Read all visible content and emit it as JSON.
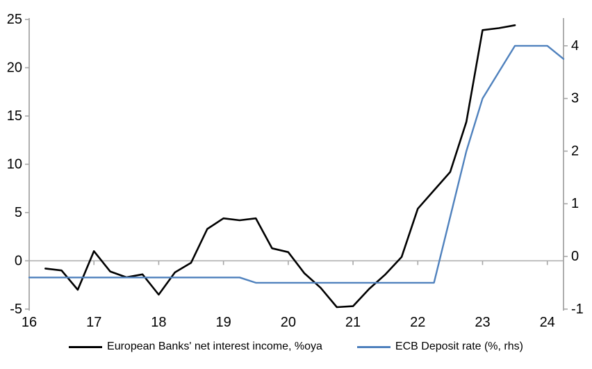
{
  "chart_data": {
    "type": "line",
    "title": "",
    "xlabel": "",
    "ylabel_left": "",
    "ylabel_right": "",
    "x_range": [
      16,
      24.25
    ],
    "x_tick_values": [
      16,
      17,
      18,
      19,
      20,
      21,
      22,
      23,
      24
    ],
    "left_axis": {
      "range": [
        -5,
        25
      ],
      "ticks": [
        25,
        20,
        15,
        10,
        5,
        0,
        -5
      ]
    },
    "right_axis": {
      "range": [
        -1,
        4.5
      ],
      "ticks": [
        4,
        3,
        2,
        1,
        0,
        -1
      ]
    },
    "grid": "zero-line-only",
    "legend_position": "bottom",
    "colors": {
      "axis": "#a6a6a6",
      "zero_line": "#b0b0b0",
      "text": "#000000"
    },
    "series": [
      {
        "name": "European Banks' net interest income, %oya",
        "axis": "left",
        "color": "#000000",
        "width": 2.6,
        "x": [
          16.25,
          16.5,
          16.75,
          17,
          17.25,
          17.5,
          17.75,
          18,
          18.25,
          18.5,
          18.75,
          19,
          19.25,
          19.5,
          19.75,
          20,
          20.25,
          20.5,
          20.75,
          21,
          21.25,
          21.5,
          21.75,
          22,
          22.25,
          22.5,
          22.75,
          23,
          23.25,
          23.5
        ],
        "values": [
          -0.8,
          -1.0,
          -3.0,
          1.0,
          -1.1,
          -1.7,
          -1.4,
          -3.5,
          -1.2,
          -0.2,
          3.3,
          4.4,
          4.2,
          4.4,
          1.3,
          0.9,
          -1.3,
          -2.8,
          -4.8,
          -4.7,
          -2.9,
          -1.4,
          0.4,
          5.4,
          7.3,
          9.2,
          14.4,
          23.9,
          24.1,
          24.4
        ]
      },
      {
        "name": "ECB Deposit rate (%, rhs)",
        "axis": "right",
        "color": "#4f81bd",
        "width": 2.4,
        "x": [
          16,
          16.25,
          16.5,
          16.75,
          17,
          17.25,
          17.5,
          17.75,
          18,
          18.25,
          18.5,
          18.75,
          19,
          19.25,
          19.5,
          19.75,
          20,
          20.25,
          20.5,
          20.75,
          21,
          21.25,
          21.5,
          21.75,
          22,
          22.25,
          22.5,
          22.75,
          23,
          23.25,
          23.5,
          23.75,
          24,
          24.25
        ],
        "values": [
          -0.4,
          -0.4,
          -0.4,
          -0.4,
          -0.4,
          -0.4,
          -0.4,
          -0.4,
          -0.4,
          -0.4,
          -0.4,
          -0.4,
          -0.4,
          -0.4,
          -0.5,
          -0.5,
          -0.5,
          -0.5,
          -0.5,
          -0.5,
          -0.5,
          -0.5,
          -0.5,
          -0.5,
          -0.5,
          -0.5,
          0.75,
          2.0,
          3.0,
          3.5,
          4.0,
          4.0,
          4.0,
          3.75
        ]
      }
    ]
  },
  "legend": {
    "items": [
      {
        "label": "European Banks' net interest income, %oya"
      },
      {
        "label": "ECB Deposit rate (%, rhs)"
      }
    ]
  }
}
